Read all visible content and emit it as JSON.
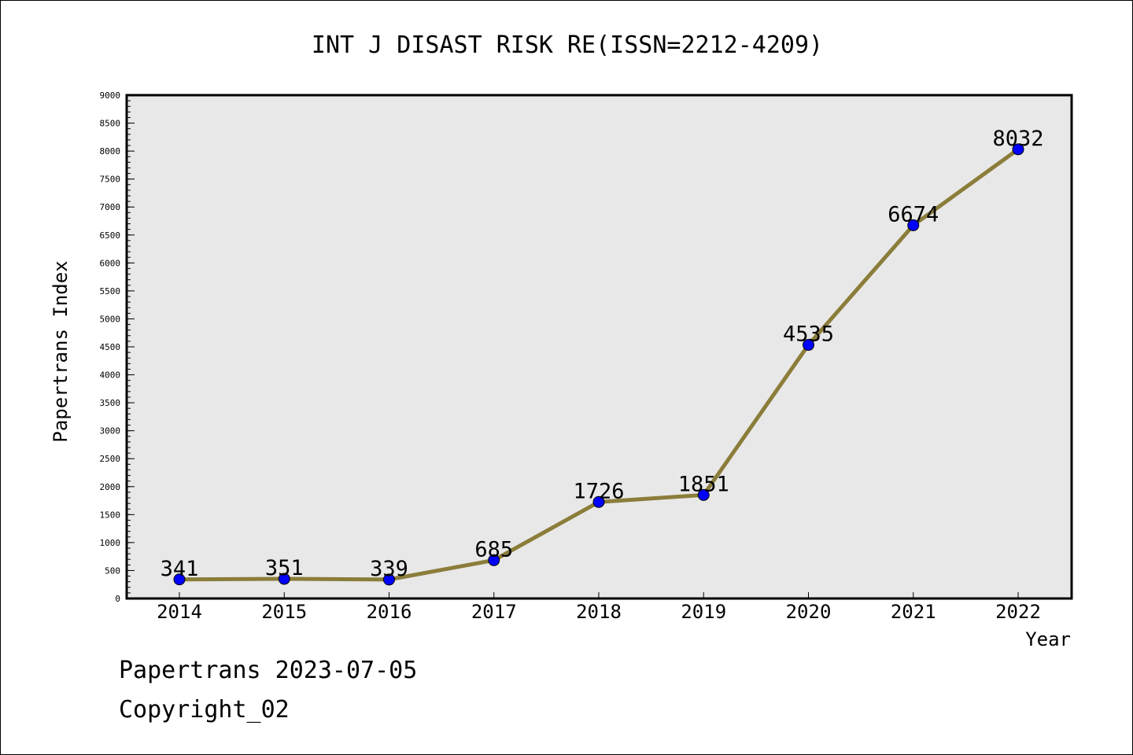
{
  "chart_data": {
    "type": "line",
    "title": "INT J DISAST RISK RE(ISSN=2212-4209)",
    "xlabel": "Year",
    "ylabel": "Papertrans Index",
    "categories": [
      "2014",
      "2015",
      "2016",
      "2017",
      "2018",
      "2019",
      "2020",
      "2021",
      "2022"
    ],
    "values": [
      341,
      351,
      339,
      685,
      1726,
      1851,
      4535,
      6674,
      8032
    ],
    "data_labels": [
      "341",
      "351",
      "339",
      "685",
      "1726",
      "1851",
      "4535",
      "6674",
      "8032"
    ],
    "ylim": [
      0,
      9000
    ],
    "yticks": [
      0,
      500,
      1000,
      1500,
      2000,
      2500,
      3000,
      3500,
      4000,
      4500,
      5000,
      5500,
      6000,
      6500,
      7000,
      7500,
      8000,
      8500,
      9000
    ],
    "ytick_labels": [
      "0",
      "500",
      "1000",
      "1500",
      "2000",
      "2500",
      "3000",
      "3500",
      "4000",
      "4500",
      "5000",
      "5500",
      "6000",
      "6500",
      "7000",
      "7500",
      "8000",
      "8500",
      "9000"
    ],
    "grid": false,
    "legend": "none",
    "colors": {
      "line": "#8b7d3a",
      "marker": "#0000ff",
      "plot_background": "#e8e8e8",
      "frame": "#000000"
    }
  },
  "footer": {
    "date_text": "Papertrans 2023-07-05",
    "copyright_text": "Copyright_02"
  }
}
